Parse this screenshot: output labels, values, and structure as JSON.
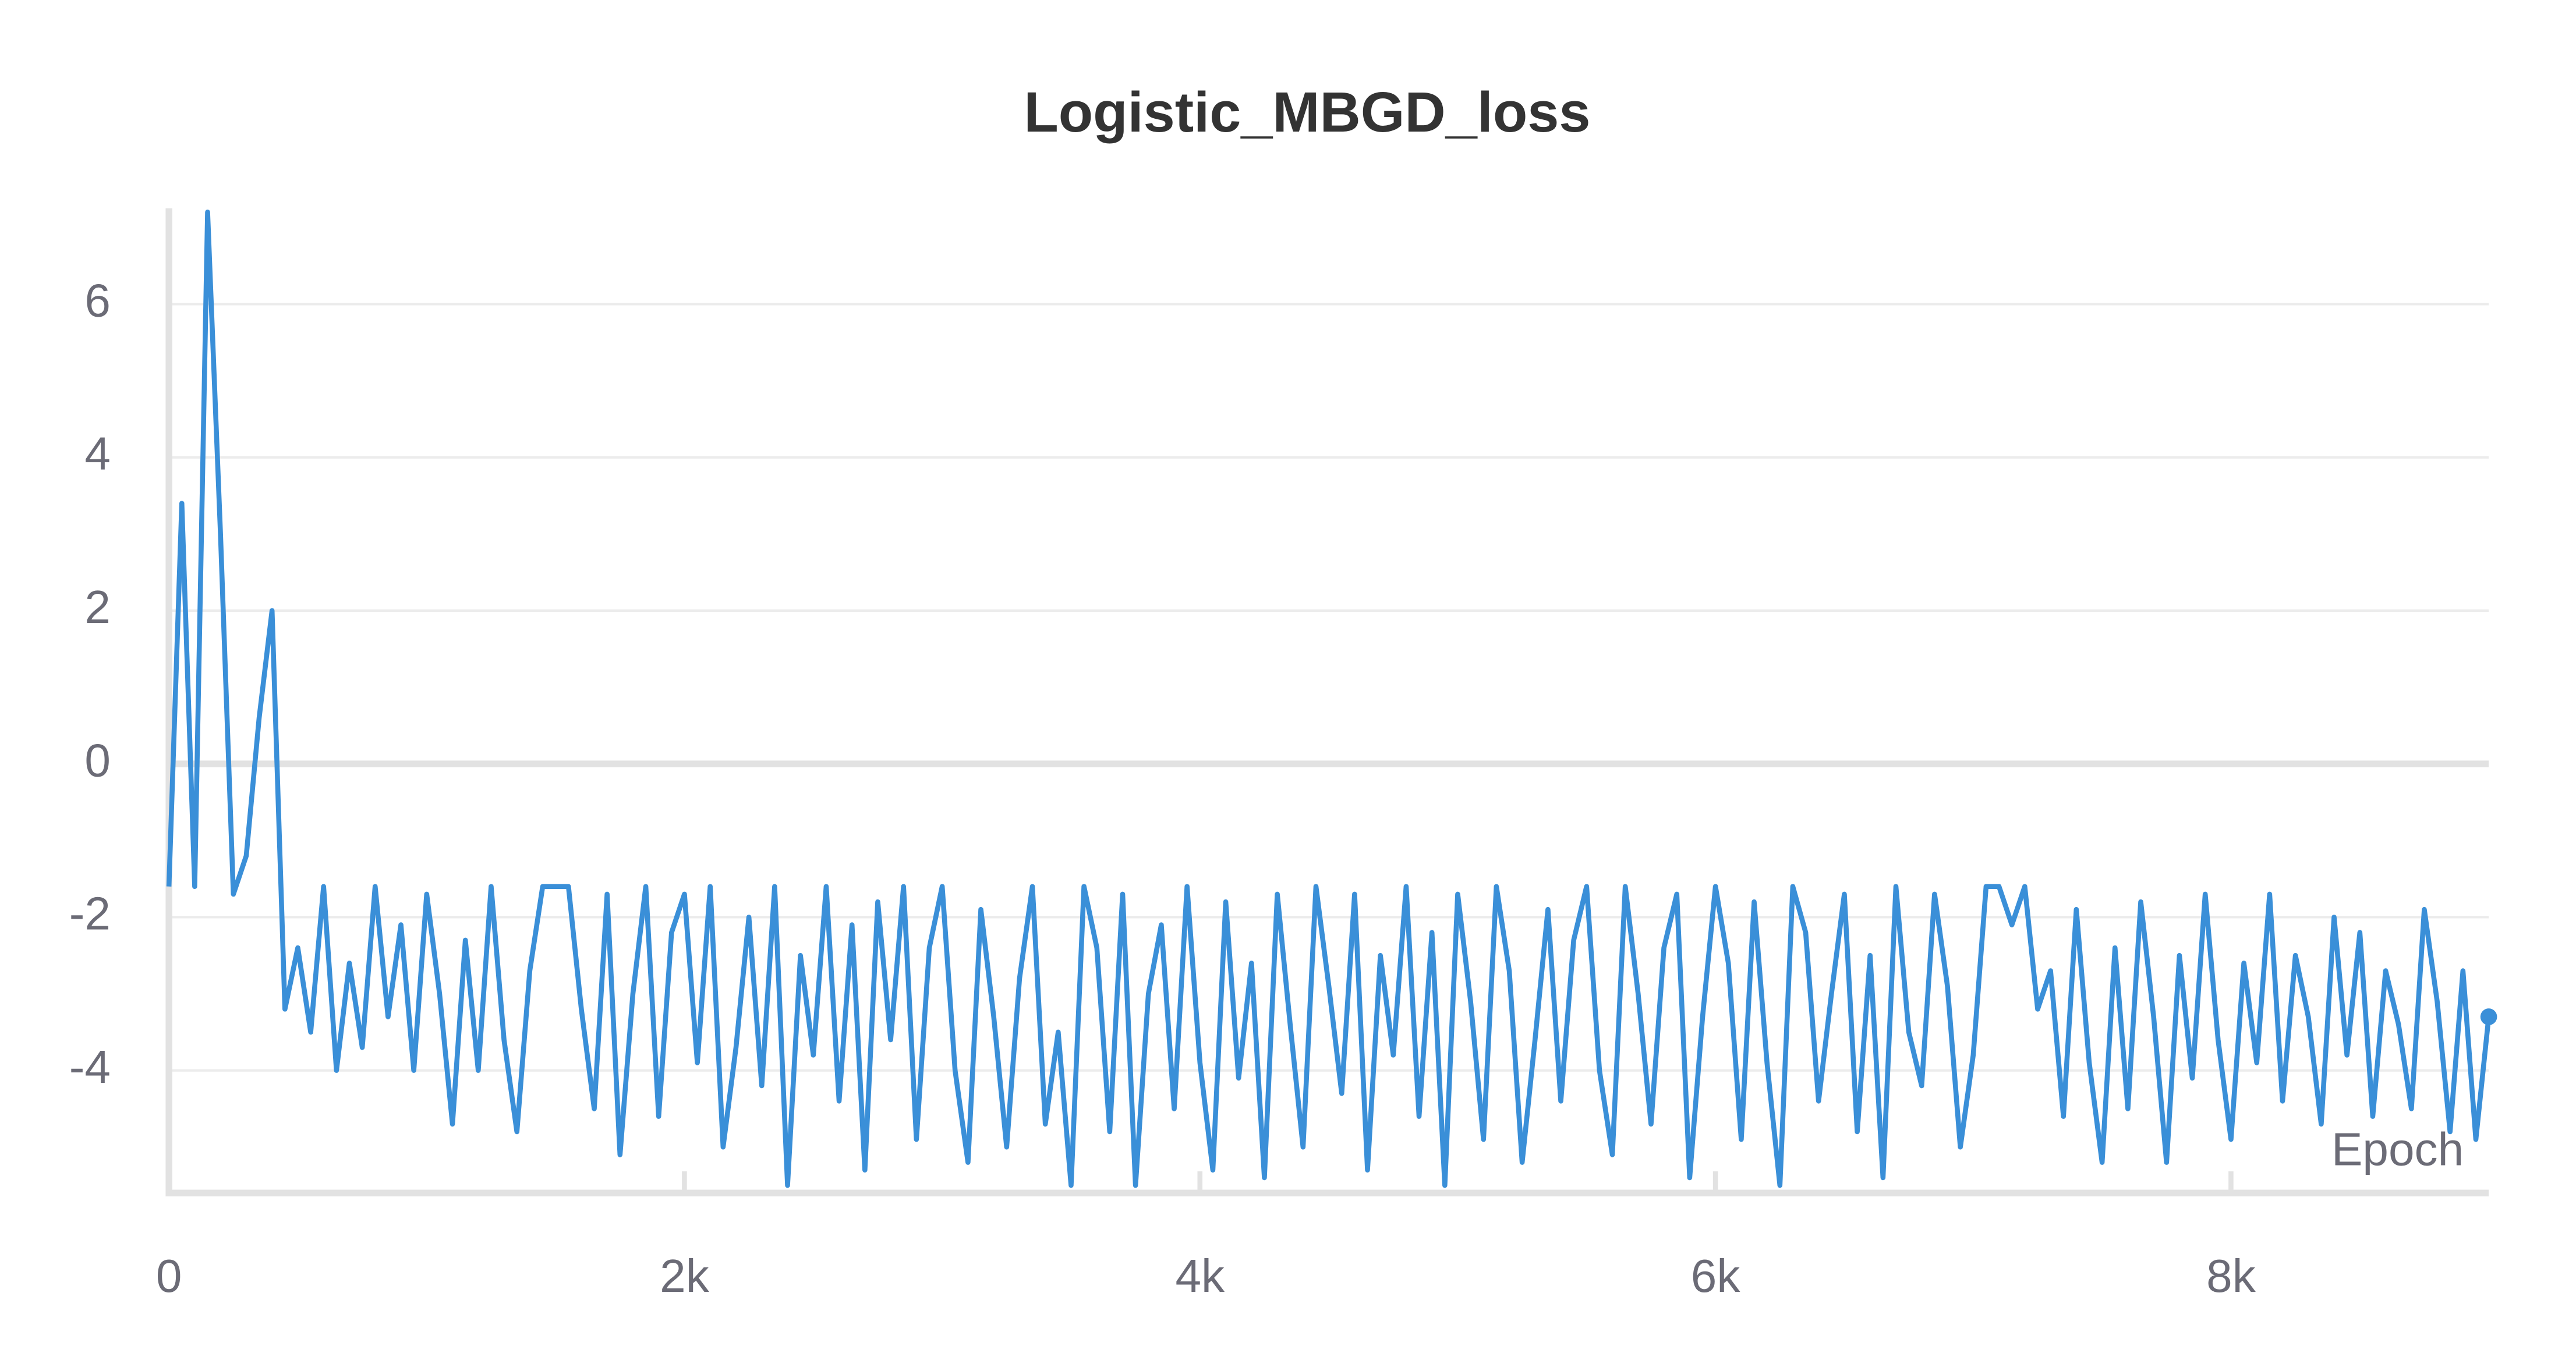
{
  "chart_data": {
    "type": "line",
    "title": "Logistic_MBGD_loss",
    "x_label": "Epoch",
    "color": "#3a8fd8",
    "grid": true,
    "xlim": [
      0,
      9000
    ],
    "ylim": [
      -5.6,
      7.25
    ],
    "xticks": [
      0,
      {
        "value": 2000,
        "label": "2k"
      },
      {
        "value": 4000,
        "label": "4k"
      },
      {
        "value": 6000,
        "label": "6k"
      },
      {
        "value": 8000,
        "label": "8k"
      }
    ],
    "yticks": [
      -4,
      -2,
      0,
      2,
      4,
      6
    ],
    "x": [
      0,
      50,
      100,
      150,
      200,
      250,
      300,
      350,
      400,
      450,
      500,
      550,
      600,
      650,
      700,
      750,
      800,
      850,
      900,
      950,
      1000,
      1050,
      1100,
      1150,
      1200,
      1250,
      1300,
      1350,
      1400,
      1450,
      1500,
      1550,
      1600,
      1650,
      1700,
      1750,
      1800,
      1850,
      1900,
      1950,
      2000,
      2050,
      2100,
      2150,
      2200,
      2250,
      2300,
      2350,
      2400,
      2450,
      2500,
      2550,
      2600,
      2650,
      2700,
      2750,
      2800,
      2850,
      2900,
      2950,
      3000,
      3050,
      3100,
      3150,
      3200,
      3250,
      3300,
      3350,
      3400,
      3450,
      3500,
      3550,
      3600,
      3650,
      3700,
      3750,
      3800,
      3850,
      3900,
      3950,
      4000,
      4050,
      4100,
      4150,
      4200,
      4250,
      4300,
      4350,
      4400,
      4450,
      4500,
      4550,
      4600,
      4650,
      4700,
      4750,
      4800,
      4850,
      4900,
      4950,
      5000,
      5050,
      5100,
      5150,
      5200,
      5250,
      5300,
      5350,
      5400,
      5450,
      5500,
      5550,
      5600,
      5650,
      5700,
      5750,
      5800,
      5850,
      5900,
      5950,
      6000,
      6050,
      6100,
      6150,
      6200,
      6250,
      6300,
      6350,
      6400,
      6450,
      6500,
      6550,
      6600,
      6650,
      6700,
      6750,
      6800,
      6850,
      6900,
      6950,
      7000,
      7050,
      7100,
      7150,
      7200,
      7250,
      7300,
      7350,
      7400,
      7450,
      7500,
      7550,
      7600,
      7650,
      7700,
      7750,
      7800,
      7850,
      7900,
      7950,
      8000,
      8050,
      8100,
      8150,
      8200,
      8250,
      8300,
      8350,
      8400,
      8450,
      8500,
      8550,
      8600,
      8650,
      8700,
      8750,
      8800,
      8850,
      8900,
      8950,
      9000
    ],
    "values": [
      -1.6,
      3.4,
      -1.6,
      7.2,
      3.0,
      -1.7,
      -1.2,
      0.6,
      2.0,
      -3.2,
      -2.4,
      -3.5,
      -1.6,
      -4.0,
      -2.6,
      -3.7,
      -1.6,
      -3.3,
      -2.1,
      -4.0,
      -1.7,
      -3.0,
      -4.7,
      -2.3,
      -4.0,
      -1.6,
      -3.6,
      -4.8,
      -2.7,
      -1.6,
      -1.6,
      -1.6,
      -3.2,
      -4.5,
      -1.7,
      -5.1,
      -3.0,
      -1.6,
      -4.6,
      -2.2,
      -1.7,
      -3.9,
      -1.6,
      -5.0,
      -3.7,
      -2.0,
      -4.2,
      -1.6,
      -5.5,
      -2.5,
      -3.8,
      -1.6,
      -4.4,
      -2.1,
      -5.3,
      -1.8,
      -3.6,
      -1.6,
      -4.9,
      -2.4,
      -1.6,
      -4.0,
      -5.2,
      -1.9,
      -3.3,
      -5.0,
      -2.8,
      -1.6,
      -4.7,
      -3.5,
      -5.5,
      -1.6,
      -2.4,
      -4.8,
      -1.7,
      -5.5,
      -3.0,
      -2.1,
      -4.5,
      -1.6,
      -3.9,
      -5.3,
      -1.8,
      -4.1,
      -2.6,
      -5.4,
      -1.7,
      -3.4,
      -5.0,
      -1.6,
      -2.9,
      -4.3,
      -1.7,
      -5.3,
      -2.5,
      -3.8,
      -1.6,
      -4.6,
      -2.2,
      -5.5,
      -1.7,
      -3.1,
      -4.9,
      -1.6,
      -2.7,
      -5.2,
      -3.6,
      -1.9,
      -4.4,
      -2.3,
      -1.6,
      -4.0,
      -5.1,
      -1.6,
      -3.0,
      -4.7,
      -2.4,
      -1.7,
      -5.4,
      -3.3,
      -1.6,
      -2.6,
      -4.9,
      -1.8,
      -3.9,
      -5.5,
      -1.6,
      -2.2,
      -4.4,
      -3.0,
      -1.7,
      -4.8,
      -2.5,
      -5.4,
      -1.6,
      -3.5,
      -4.2,
      -1.7,
      -2.9,
      -5.0,
      -3.8,
      -1.6,
      -1.6,
      -2.1,
      -1.6,
      -3.2,
      -2.7,
      -4.6,
      -1.9,
      -3.9,
      -5.2,
      -2.4,
      -4.5,
      -1.8,
      -3.3,
      -5.2,
      -2.5,
      -4.1,
      -1.7,
      -3.6,
      -4.9,
      -2.6,
      -3.9,
      -1.7,
      -4.4,
      -2.5,
      -3.3,
      -4.7,
      -2.0,
      -3.8,
      -2.2,
      -4.6,
      -2.7,
      -3.4,
      -4.5,
      -1.9,
      -3.1,
      -4.8,
      -2.7,
      -4.9,
      -3.3
    ]
  }
}
